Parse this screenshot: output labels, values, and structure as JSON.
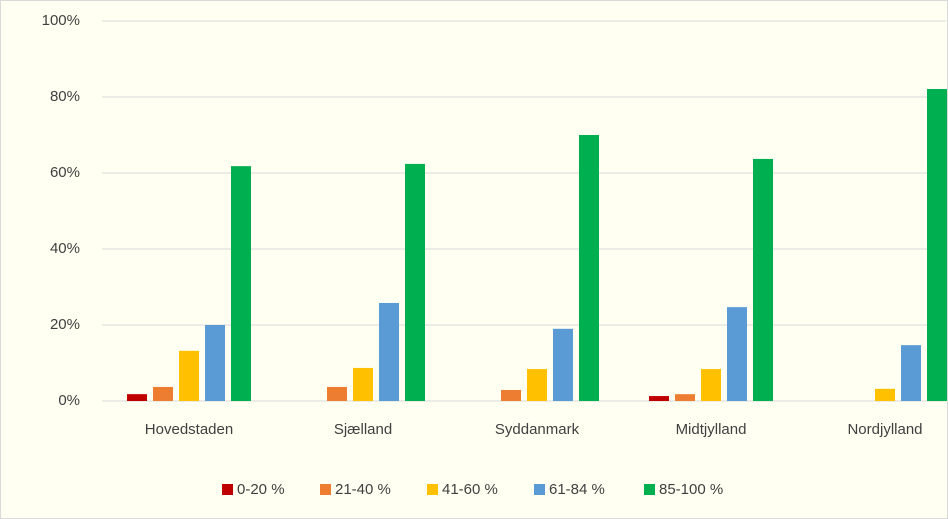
{
  "chart_data": {
    "type": "bar",
    "categories": [
      "Hovedstaden",
      "Sjælland",
      "Syddanmark",
      "Midtjylland",
      "Nordjylland"
    ],
    "series": [
      {
        "name": "0-20 %",
        "color": "#c00000",
        "values": [
          1.8,
          0,
          0,
          1.3,
          0
        ]
      },
      {
        "name": "21-40 %",
        "color": "#ed7d31",
        "values": [
          3.7,
          3.7,
          2.9,
          1.8,
          0
        ]
      },
      {
        "name": "41-60 %",
        "color": "#ffc000",
        "values": [
          13.2,
          8.7,
          8.4,
          8.4,
          3.2
        ]
      },
      {
        "name": "61-84 %",
        "color": "#5b9bd5",
        "values": [
          20,
          25.8,
          19,
          24.7,
          14.7
        ]
      },
      {
        "name": "85-100 %",
        "color": "#00b050",
        "values": [
          61.8,
          62.4,
          70,
          63.7,
          82.1
        ]
      }
    ],
    "ylim": [
      0,
      100
    ],
    "yticks": [
      {
        "value": 0,
        "label": "0%"
      },
      {
        "value": 20,
        "label": "20%"
      },
      {
        "value": 40,
        "label": "40%"
      },
      {
        "value": 60,
        "label": "60%"
      },
      {
        "value": 80,
        "label": "80%"
      },
      {
        "value": 100,
        "label": "100%"
      }
    ],
    "grid": true,
    "legend": "bottom"
  }
}
